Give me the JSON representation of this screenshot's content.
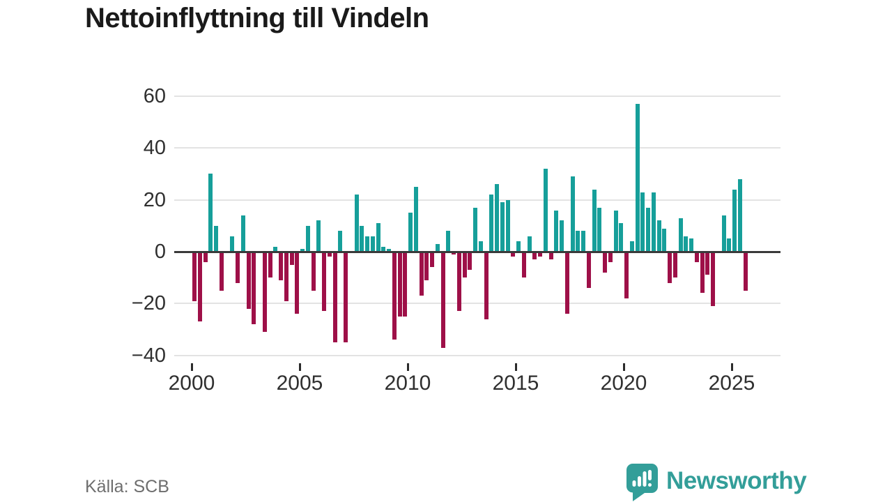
{
  "title": "Nettoinflyttning till Vindeln",
  "source": "Källa: SCB",
  "brand": {
    "name": "Newsworthy",
    "color": "#339e99"
  },
  "chart_data": {
    "type": "bar",
    "title": "Nettoinflyttning till Vindeln",
    "frequency": "quarterly",
    "start_year": 2000,
    "start_quarter": 1,
    "values": [
      -19,
      -27,
      -4,
      30,
      10,
      -15,
      0,
      6,
      -12,
      14,
      -22,
      -28,
      0,
      -31,
      -10,
      2,
      -11,
      -19,
      -5,
      -24,
      1,
      10,
      -15,
      12,
      -23,
      -2,
      -35,
      8,
      -35,
      0,
      22,
      10,
      6,
      6,
      11,
      2,
      1,
      -34,
      -25,
      -25,
      15,
      25,
      -17,
      -11,
      -6,
      3,
      -37,
      8,
      -1,
      -23,
      -10,
      -7,
      17,
      4,
      -26,
      22,
      26,
      19,
      20,
      -2,
      4,
      -10,
      6,
      -3,
      -2,
      32,
      -3,
      16,
      12,
      -24,
      29,
      8,
      8,
      -14,
      24,
      17,
      -8,
      -4,
      16,
      11,
      -18,
      4,
      57,
      23,
      17,
      23,
      12,
      9,
      -12,
      -10,
      13,
      6,
      5,
      -4,
      -16,
      -9,
      -21,
      0,
      14,
      5,
      24,
      28,
      -15
    ],
    "x_ticks": [
      "2000",
      "2005",
      "2010",
      "2015",
      "2020",
      "2025"
    ],
    "y_ticks": [
      60,
      40,
      20,
      0,
      -20,
      -40
    ],
    "y_tick_labels": [
      "60",
      "40",
      "20",
      "0",
      "−20",
      "−40"
    ],
    "ylim": [
      -44,
      62
    ],
    "grid": true,
    "legend": "none",
    "positive_color": "#169f9a",
    "negative_color": "#9e1048",
    "zero_line_color": "#3a3a3a",
    "gridline_color": "#e3e3e3"
  }
}
